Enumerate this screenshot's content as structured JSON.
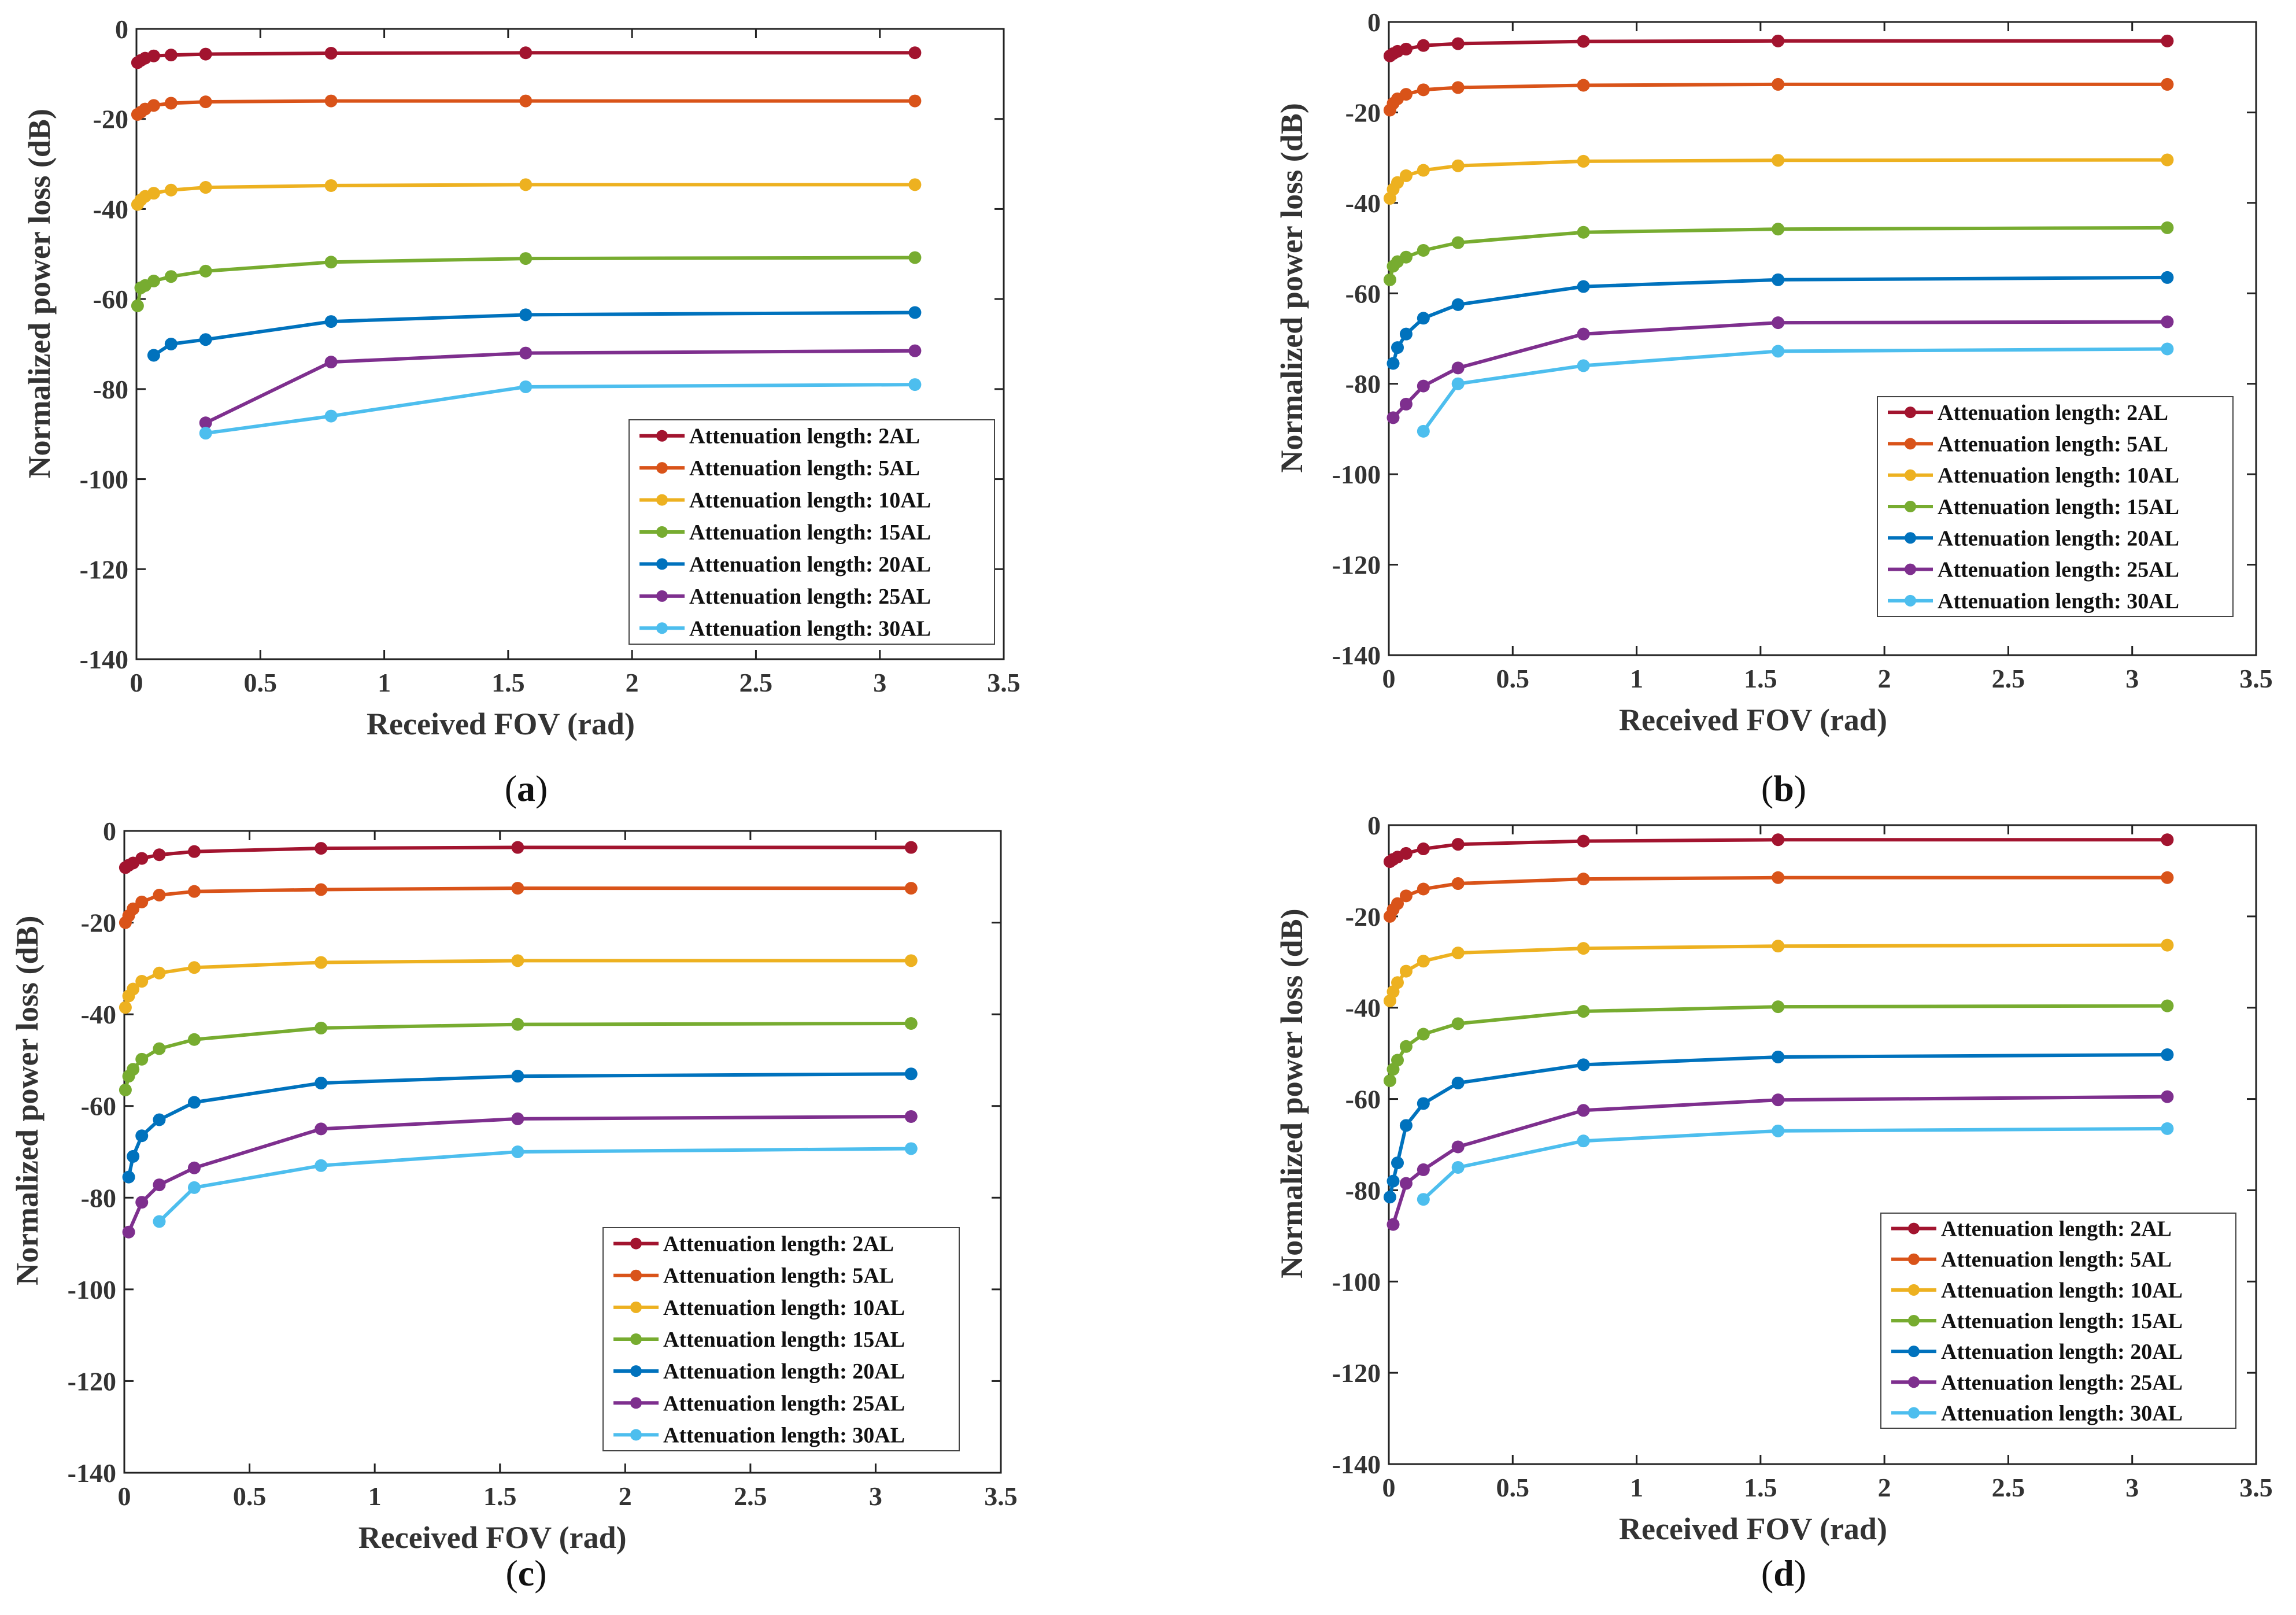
{
  "colors": {
    "axis": "#222222",
    "series": [
      "#A2142F",
      "#D95319",
      "#EDB120",
      "#77AC30",
      "#0072BD",
      "#7E2F8E",
      "#4DBEEE"
    ]
  },
  "chart_data": [
    {
      "type": "line",
      "panel": "a",
      "panel_label": "(a)",
      "xlabel": "Received FOV (rad)",
      "ylabel": "Normalized power loss (dB)",
      "xlim": [
        0,
        3.5
      ],
      "ylim": [
        -140,
        0
      ],
      "xticks": [
        "0",
        "0.5",
        "1",
        "1.5",
        "2",
        "2.5",
        "3",
        "3.5"
      ],
      "yticks": [
        "0",
        "-20",
        "-40",
        "-60",
        "-80",
        "-100",
        "-120",
        "-140"
      ],
      "legend_position": "bottom-right",
      "series": [
        {
          "name": "Attenuation length: 2AL",
          "x": [
            0.0044,
            0.0175,
            0.035,
            0.0698,
            0.1396,
            0.2793,
            0.7854,
            1.5708,
            3.1416
          ],
          "y": [
            -7.5,
            -7,
            -6.5,
            -6,
            -5.8,
            -5.6,
            -5.4,
            -5.3,
            -5.3
          ]
        },
        {
          "name": "Attenuation length: 5AL",
          "x": [
            0.0044,
            0.0175,
            0.035,
            0.0698,
            0.1396,
            0.2793,
            0.7854,
            1.5708,
            3.1416
          ],
          "y": [
            -19,
            -18.5,
            -17.8,
            -17,
            -16.5,
            -16.2,
            -16,
            -16,
            -16
          ]
        },
        {
          "name": "Attenuation length: 10AL",
          "x": [
            0.0044,
            0.0175,
            0.035,
            0.0698,
            0.1396,
            0.2793,
            0.7854,
            1.5708,
            3.1416
          ],
          "y": [
            -39,
            -38,
            -37.2,
            -36.5,
            -35.8,
            -35.2,
            -34.8,
            -34.6,
            -34.6
          ]
        },
        {
          "name": "Attenuation length: 15AL",
          "x": [
            0.0044,
            0.0175,
            0.035,
            0.0698,
            0.1396,
            0.2793,
            0.7854,
            1.5708,
            3.1416
          ],
          "y": [
            -61.5,
            -57.5,
            -57,
            -56,
            -55,
            -53.8,
            -51.8,
            -51,
            -50.8
          ]
        },
        {
          "name": "Attenuation length: 20AL",
          "x": [
            0.0698,
            0.1396,
            0.2793,
            0.7854,
            1.5708,
            3.1416
          ],
          "y": [
            -72.5,
            -70,
            -69,
            -65,
            -63.5,
            -63
          ]
        },
        {
          "name": "Attenuation length: 25AL",
          "x": [
            0.2793,
            0.7854,
            1.5708,
            3.1416
          ],
          "y": [
            -87.5,
            -74,
            -72,
            -71.5
          ]
        },
        {
          "name": "Attenuation length: 30AL",
          "x": [
            0.2793,
            0.7854,
            1.5708,
            3.1416
          ],
          "y": [
            -89.8,
            -86,
            -79.5,
            -79
          ]
        }
      ]
    },
    {
      "type": "line",
      "panel": "b",
      "panel_label": "(b)",
      "xlabel": "Received FOV (rad)",
      "ylabel": "Normalized power loss (dB)",
      "xlim": [
        0,
        3.5
      ],
      "ylim": [
        -140,
        0
      ],
      "xticks": [
        "0",
        "0.5",
        "1",
        "1.5",
        "2",
        "2.5",
        "3",
        "3.5"
      ],
      "yticks": [
        "0",
        "-20",
        "-40",
        "-60",
        "-80",
        "-100",
        "-120",
        "-140"
      ],
      "legend_position": "bottom-right",
      "series": [
        {
          "name": "Attenuation length: 2AL",
          "x": [
            0.0044,
            0.0175,
            0.035,
            0.0698,
            0.1396,
            0.2793,
            0.7854,
            1.5708,
            3.1416
          ],
          "y": [
            -7.5,
            -7,
            -6.5,
            -6,
            -5.2,
            -4.8,
            -4.3,
            -4.2,
            -4.2
          ]
        },
        {
          "name": "Attenuation length: 5AL",
          "x": [
            0.0044,
            0.0175,
            0.035,
            0.0698,
            0.1396,
            0.2793,
            0.7854,
            1.5708,
            3.1416
          ],
          "y": [
            -19.5,
            -18,
            -17,
            -16,
            -15,
            -14.5,
            -14,
            -13.8,
            -13.8
          ]
        },
        {
          "name": "Attenuation length: 10AL",
          "x": [
            0.0044,
            0.0175,
            0.035,
            0.0698,
            0.1396,
            0.2793,
            0.7854,
            1.5708,
            3.1416
          ],
          "y": [
            -39,
            -37,
            -35.5,
            -34,
            -32.8,
            -31.8,
            -30.8,
            -30.6,
            -30.5
          ]
        },
        {
          "name": "Attenuation length: 15AL",
          "x": [
            0.0044,
            0.0175,
            0.035,
            0.0698,
            0.1396,
            0.2793,
            0.7854,
            1.5708,
            3.1416
          ],
          "y": [
            -57,
            -54,
            -53,
            -52,
            -50.5,
            -48.8,
            -46.5,
            -45.8,
            -45.5
          ]
        },
        {
          "name": "Attenuation length: 20AL",
          "x": [
            0.0175,
            0.035,
            0.0698,
            0.1396,
            0.2793,
            0.7854,
            1.5708,
            3.1416
          ],
          "y": [
            -75.5,
            -72,
            -69,
            -65.5,
            -62.5,
            -58.5,
            -57,
            -56.5
          ]
        },
        {
          "name": "Attenuation length: 25AL",
          "x": [
            0.0175,
            0.0698,
            0.1396,
            0.2793,
            0.7854,
            1.5708,
            3.1416
          ],
          "y": [
            -87.5,
            -84.5,
            -80.5,
            -76.5,
            -69,
            -66.5,
            -66.3
          ]
        },
        {
          "name": "Attenuation length: 30AL",
          "x": [
            0.1396,
            0.2793,
            0.7854,
            1.5708,
            3.1416
          ],
          "y": [
            -90.5,
            -80,
            -76,
            -72.8,
            -72.3
          ]
        }
      ]
    },
    {
      "type": "line",
      "panel": "c",
      "panel_label": "(c)",
      "xlabel": "Received FOV (rad)",
      "ylabel": "Normalized power loss (dB)",
      "xlim": [
        0,
        3.5
      ],
      "ylim": [
        -140,
        0
      ],
      "xticks": [
        "0",
        "0.5",
        "1",
        "1.5",
        "2",
        "2.5",
        "3",
        "3.5"
      ],
      "yticks": [
        "0",
        "-20",
        "-40",
        "-60",
        "-80",
        "-100",
        "-120",
        "-140"
      ],
      "legend_position": "bottom-right",
      "series": [
        {
          "name": "Attenuation length: 2AL",
          "x": [
            0.0044,
            0.0175,
            0.035,
            0.0698,
            0.1396,
            0.2793,
            0.7854,
            1.5708,
            3.1416
          ],
          "y": [
            -8,
            -7.5,
            -7,
            -6,
            -5.2,
            -4.5,
            -3.8,
            -3.6,
            -3.6
          ]
        },
        {
          "name": "Attenuation length: 5AL",
          "x": [
            0.0044,
            0.0175,
            0.035,
            0.0698,
            0.1396,
            0.2793,
            0.7854,
            1.5708,
            3.1416
          ],
          "y": [
            -20,
            -18.5,
            -17,
            -15.5,
            -14,
            -13.2,
            -12.8,
            -12.5,
            -12.5
          ]
        },
        {
          "name": "Attenuation length: 10AL",
          "x": [
            0.0044,
            0.0175,
            0.035,
            0.0698,
            0.1396,
            0.2793,
            0.7854,
            1.5708,
            3.1416
          ],
          "y": [
            -38.5,
            -36,
            -34.5,
            -32.8,
            -31,
            -29.8,
            -28.7,
            -28.3,
            -28.3
          ]
        },
        {
          "name": "Attenuation length: 15AL",
          "x": [
            0.0044,
            0.0175,
            0.035,
            0.0698,
            0.1396,
            0.2793,
            0.7854,
            1.5708,
            3.1416
          ],
          "y": [
            -56.5,
            -53.5,
            -52,
            -49.8,
            -47.5,
            -45.5,
            -43,
            -42.2,
            -42
          ]
        },
        {
          "name": "Attenuation length: 20AL",
          "x": [
            0.0175,
            0.035,
            0.0698,
            0.1396,
            0.2793,
            0.7854,
            1.5708,
            3.1416
          ],
          "y": [
            -75.5,
            -71,
            -66.5,
            -63,
            -59.2,
            -55,
            -53.5,
            -53
          ]
        },
        {
          "name": "Attenuation length: 25AL",
          "x": [
            0.0175,
            0.0698,
            0.1396,
            0.2793,
            0.7854,
            1.5708,
            3.1416
          ],
          "y": [
            -87.5,
            -81,
            -77.2,
            -73.5,
            -65,
            -62.8,
            -62.3
          ]
        },
        {
          "name": "Attenuation length: 30AL",
          "x": [
            0.1396,
            0.2793,
            0.7854,
            1.5708,
            3.1416
          ],
          "y": [
            -85.2,
            -77.8,
            -73,
            -70,
            -69.3
          ]
        }
      ]
    },
    {
      "type": "line",
      "panel": "d",
      "panel_label": "(d)",
      "xlabel": "Received FOV (rad)",
      "ylabel": "Normalized power loss (dB)",
      "xlim": [
        0,
        3.5
      ],
      "ylim": [
        -140,
        0
      ],
      "xticks": [
        "0",
        "0.5",
        "1",
        "1.5",
        "2",
        "2.5",
        "3",
        "3.5"
      ],
      "yticks": [
        "0",
        "-20",
        "-40",
        "-60",
        "-80",
        "-100",
        "-120",
        "-140"
      ],
      "legend_position": "bottom-right",
      "series": [
        {
          "name": "Attenuation length: 2AL",
          "x": [
            0.0044,
            0.0175,
            0.035,
            0.0698,
            0.1396,
            0.2793,
            0.7854,
            1.5708,
            3.1416
          ],
          "y": [
            -8,
            -7.5,
            -7,
            -6.2,
            -5.2,
            -4.2,
            -3.5,
            -3.2,
            -3.2
          ]
        },
        {
          "name": "Attenuation length: 5AL",
          "x": [
            0.0044,
            0.0175,
            0.035,
            0.0698,
            0.1396,
            0.2793,
            0.7854,
            1.5708,
            3.1416
          ],
          "y": [
            -20,
            -18.5,
            -17.2,
            -15.5,
            -14,
            -12.8,
            -11.8,
            -11.5,
            -11.5
          ]
        },
        {
          "name": "Attenuation length: 10AL",
          "x": [
            0.0044,
            0.0175,
            0.035,
            0.0698,
            0.1396,
            0.2793,
            0.7854,
            1.5708,
            3.1416
          ],
          "y": [
            -38.5,
            -36.5,
            -34.5,
            -32,
            -29.8,
            -28,
            -27,
            -26.5,
            -26.3
          ]
        },
        {
          "name": "Attenuation length: 15AL",
          "x": [
            0.0044,
            0.0175,
            0.035,
            0.0698,
            0.1396,
            0.2793,
            0.7854,
            1.5708,
            3.1416
          ],
          "y": [
            -56,
            -53.5,
            -51.5,
            -48.5,
            -45.8,
            -43.5,
            -40.8,
            -39.8,
            -39.6
          ]
        },
        {
          "name": "Attenuation length: 20AL",
          "x": [
            0.0044,
            0.0175,
            0.035,
            0.0698,
            0.1396,
            0.2793,
            0.7854,
            1.5708,
            3.1416
          ],
          "y": [
            -81.5,
            -78,
            -74,
            -65.8,
            -61,
            -56.5,
            -52.5,
            -50.8,
            -50.3
          ]
        },
        {
          "name": "Attenuation length: 25AL",
          "x": [
            0.0175,
            0.0698,
            0.1396,
            0.2793,
            0.7854,
            1.5708,
            3.1416
          ],
          "y": [
            -87.5,
            -78.5,
            -75.5,
            -70.5,
            -62.5,
            -60.2,
            -59.5
          ]
        },
        {
          "name": "Attenuation length: 30AL",
          "x": [
            0.1396,
            0.2793,
            0.7854,
            1.5708,
            3.1416
          ],
          "y": [
            -82,
            -75,
            -69.2,
            -67,
            -66.5
          ]
        }
      ]
    }
  ]
}
